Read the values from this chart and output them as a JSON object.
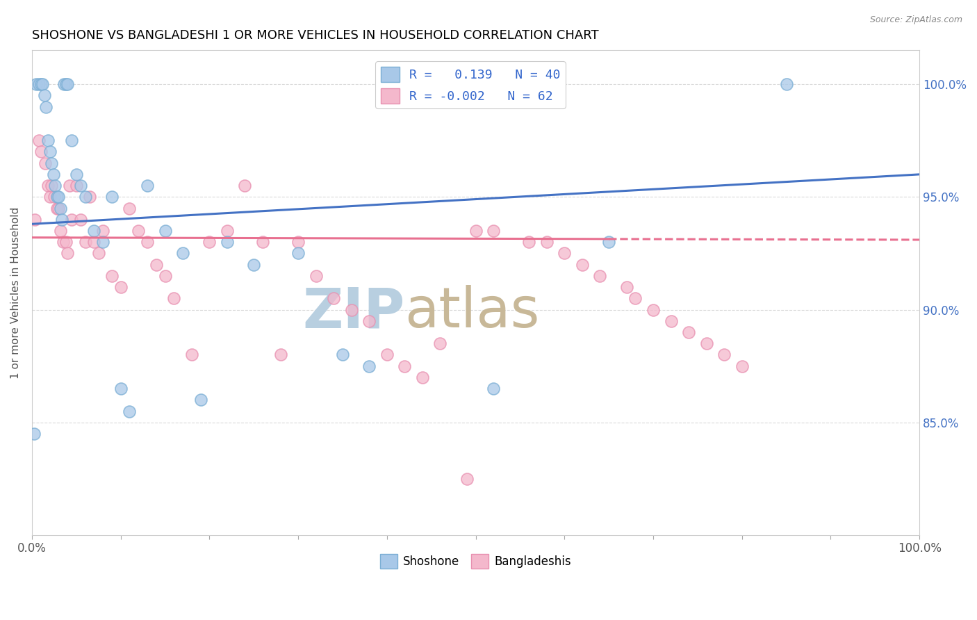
{
  "title": "SHOSHONE VS BANGLADESHI 1 OR MORE VEHICLES IN HOUSEHOLD CORRELATION CHART",
  "source": "Source: ZipAtlas.com",
  "ylabel": "1 or more Vehicles in Household",
  "xmin": 0.0,
  "xmax": 100.0,
  "ymin": 80.0,
  "ymax": 101.5,
  "yticks": [
    85.0,
    90.0,
    95.0,
    100.0
  ],
  "ytick_labels": [
    "85.0%",
    "90.0%",
    "95.0%",
    "100.0%"
  ],
  "legend_r_shoshone": "R =   0.139",
  "legend_n_shoshone": "N = 40",
  "legend_r_bangladeshi": "R = -0.002",
  "legend_n_bangladeshi": "N = 62",
  "shoshone_color": "#a8c8e8",
  "bangladeshi_color": "#f4b8cc",
  "shoshone_edge_color": "#7aaed4",
  "bangladeshi_edge_color": "#e890b0",
  "shoshone_line_color": "#4472c4",
  "bangladeshi_line_color": "#e87090",
  "watermark_zip_color": "#c0d4e8",
  "watermark_atlas_color": "#d4c8b0",
  "background_color": "#ffffff",
  "grid_color": "#d0d0d0",
  "shoshone_x": [
    0.2,
    0.5,
    0.8,
    1.0,
    1.2,
    1.4,
    1.6,
    1.8,
    2.0,
    2.2,
    2.4,
    2.6,
    2.8,
    3.0,
    3.2,
    3.4,
    3.6,
    3.8,
    4.0,
    4.5,
    5.0,
    5.5,
    6.0,
    7.0,
    8.0,
    9.0,
    10.0,
    11.0,
    13.0,
    15.0,
    17.0,
    19.0,
    22.0,
    25.0,
    30.0,
    35.0,
    38.0,
    52.0,
    65.0,
    85.0
  ],
  "shoshone_y": [
    84.5,
    100.0,
    100.0,
    100.0,
    100.0,
    99.5,
    99.0,
    97.5,
    97.0,
    96.5,
    96.0,
    95.5,
    95.0,
    95.0,
    94.5,
    94.0,
    100.0,
    100.0,
    100.0,
    97.5,
    96.0,
    95.5,
    95.0,
    93.5,
    93.0,
    95.0,
    86.5,
    85.5,
    95.5,
    93.5,
    92.5,
    86.0,
    93.0,
    92.0,
    92.5,
    88.0,
    87.5,
    86.5,
    93.0,
    100.0
  ],
  "bangladeshi_x": [
    0.3,
    0.8,
    1.0,
    1.5,
    1.8,
    2.0,
    2.2,
    2.5,
    2.8,
    3.0,
    3.2,
    3.5,
    3.8,
    4.0,
    4.2,
    4.5,
    5.0,
    5.5,
    6.0,
    6.5,
    7.0,
    7.5,
    8.0,
    9.0,
    10.0,
    11.0,
    12.0,
    13.0,
    14.0,
    15.0,
    16.0,
    18.0,
    20.0,
    22.0,
    24.0,
    26.0,
    28.0,
    30.0,
    32.0,
    34.0,
    36.0,
    38.0,
    40.0,
    42.0,
    44.0,
    46.0,
    49.0,
    52.0,
    56.0,
    58.0,
    60.0,
    62.0,
    64.0,
    50.0,
    67.0,
    68.0,
    70.0,
    72.0,
    74.0,
    76.0,
    78.0,
    80.0
  ],
  "bangladeshi_y": [
    94.0,
    97.5,
    97.0,
    96.5,
    95.5,
    95.0,
    95.5,
    95.0,
    94.5,
    94.5,
    93.5,
    93.0,
    93.0,
    92.5,
    95.5,
    94.0,
    95.5,
    94.0,
    93.0,
    95.0,
    93.0,
    92.5,
    93.5,
    91.5,
    91.0,
    94.5,
    93.5,
    93.0,
    92.0,
    91.5,
    90.5,
    88.0,
    93.0,
    93.5,
    95.5,
    93.0,
    88.0,
    93.0,
    91.5,
    90.5,
    90.0,
    89.5,
    88.0,
    87.5,
    87.0,
    88.5,
    82.5,
    93.5,
    93.0,
    93.0,
    92.5,
    92.0,
    91.5,
    93.5,
    91.0,
    90.5,
    90.0,
    89.5,
    89.0,
    88.5,
    88.0,
    87.5
  ],
  "shoshone_trend_x": [
    0.0,
    100.0
  ],
  "shoshone_trend_y": [
    93.8,
    96.0
  ],
  "bangladeshi_trend_x": [
    0.0,
    100.0
  ],
  "bangladeshi_trend_y": [
    93.2,
    93.1
  ]
}
